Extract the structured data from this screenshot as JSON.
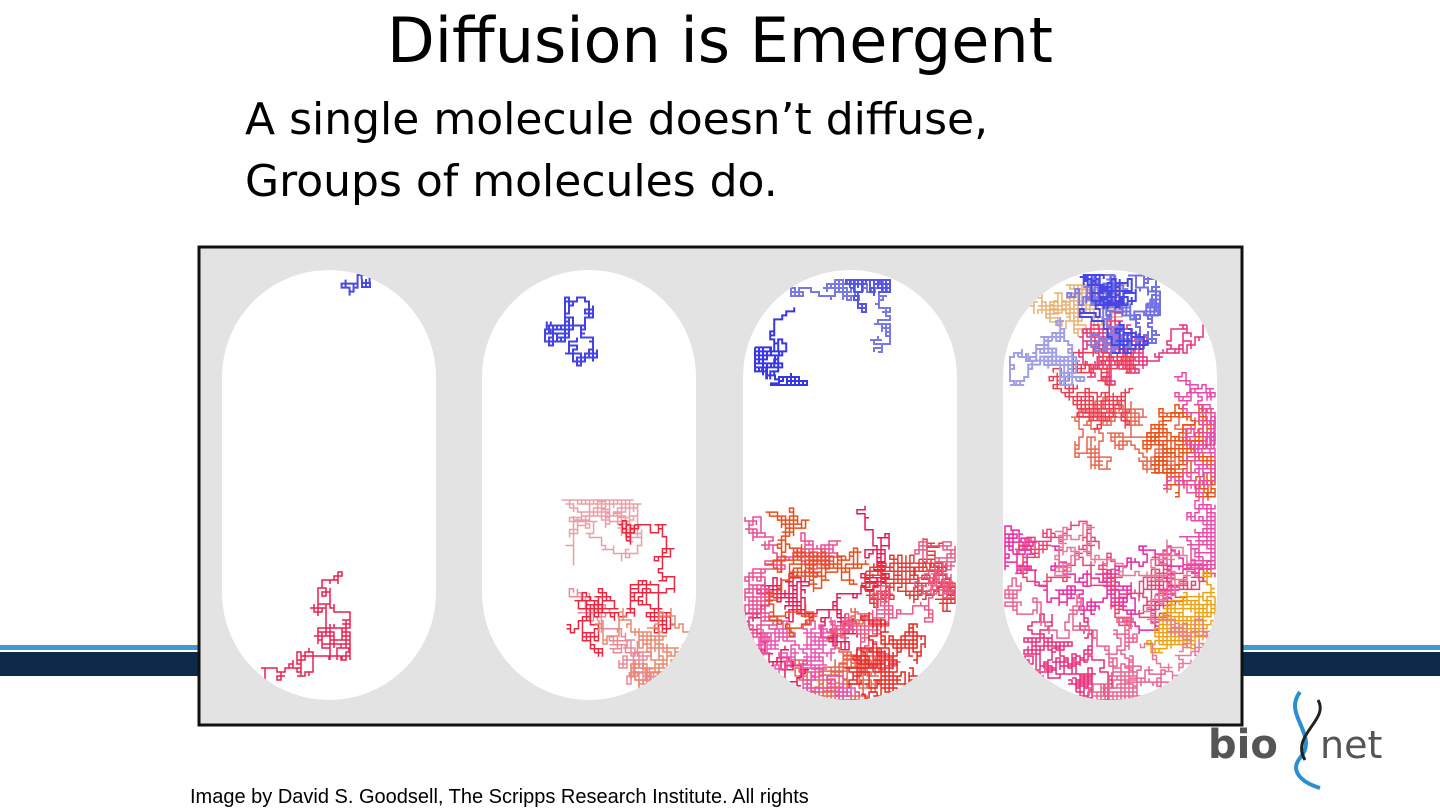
{
  "slide": {
    "title": "Diffusion is Emergent",
    "body": [
      "A single molecule doesn’t diffuse,",
      "Groups of molecules do."
    ],
    "caption": "Image by David S. Goodsell, The Scripps Research Institute.  All rights",
    "logo": [
      "bio",
      "net"
    ]
  }
}
